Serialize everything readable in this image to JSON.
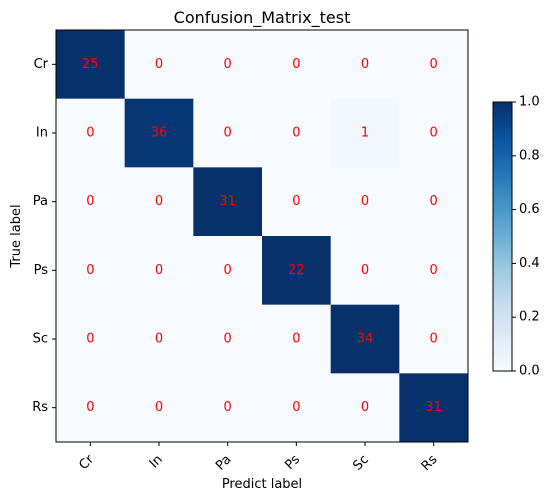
{
  "chart_data": {
    "type": "heatmap",
    "title": "Confusion_Matrix_test",
    "xlabel": "Predict label",
    "ylabel": "True label",
    "x_categories": [
      "Cr",
      "In",
      "Pa",
      "Ps",
      "Sc",
      "Rs"
    ],
    "y_categories": [
      "Cr",
      "In",
      "Pa",
      "Ps",
      "Sc",
      "Rs"
    ],
    "values": [
      [
        25,
        0,
        0,
        0,
        0,
        0
      ],
      [
        0,
        36,
        0,
        0,
        1,
        0
      ],
      [
        0,
        0,
        31,
        0,
        0,
        0
      ],
      [
        0,
        0,
        0,
        22,
        0,
        0
      ],
      [
        0,
        0,
        0,
        0,
        34,
        0
      ],
      [
        0,
        0,
        0,
        0,
        0,
        31
      ]
    ],
    "normalization": "row",
    "colormap": "Blues",
    "colorbar": {
      "range": [
        0.0,
        1.0
      ],
      "ticks": [
        "0.0",
        "0.2",
        "0.4",
        "0.6",
        "0.8",
        "1.0"
      ]
    },
    "annotation_color": "#ff0000",
    "x_tick_rotation_deg": 45,
    "grid": false
  }
}
